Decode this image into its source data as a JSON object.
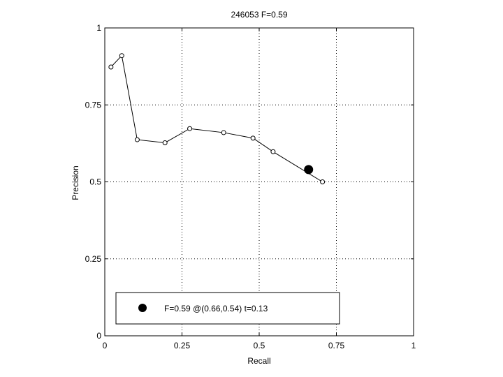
{
  "chart_data": {
    "type": "line",
    "title": "246053 F=0.59",
    "xlabel": "Recall",
    "ylabel": "Precision",
    "xlim": [
      0,
      1
    ],
    "ylim": [
      0,
      1
    ],
    "grid": true,
    "x_ticks": [
      0,
      0.25,
      0.5,
      0.75,
      1
    ],
    "y_ticks": [
      0,
      0.25,
      0.5,
      0.75,
      1
    ],
    "x_tick_labels": [
      "0",
      "0.25",
      "0.5",
      "0.75",
      "1"
    ],
    "y_tick_labels": [
      "0",
      "0.25",
      "0.5",
      "0.75",
      "1"
    ],
    "series": [
      {
        "x": [
          0.02,
          0.055,
          0.105,
          0.195,
          0.275,
          0.385,
          0.48,
          0.545,
          0.705
        ],
        "y": [
          0.873,
          0.91,
          0.637,
          0.627,
          0.673,
          0.66,
          0.642,
          0.598,
          0.5
        ]
      }
    ],
    "highlight_point": {
      "x": 0.66,
      "y": 0.54,
      "color": "#000000"
    },
    "legend": {
      "position": "bottom-left",
      "label": "F=0.59 @(0.66,0.54) t=0.13"
    },
    "line_color": "#000000"
  }
}
